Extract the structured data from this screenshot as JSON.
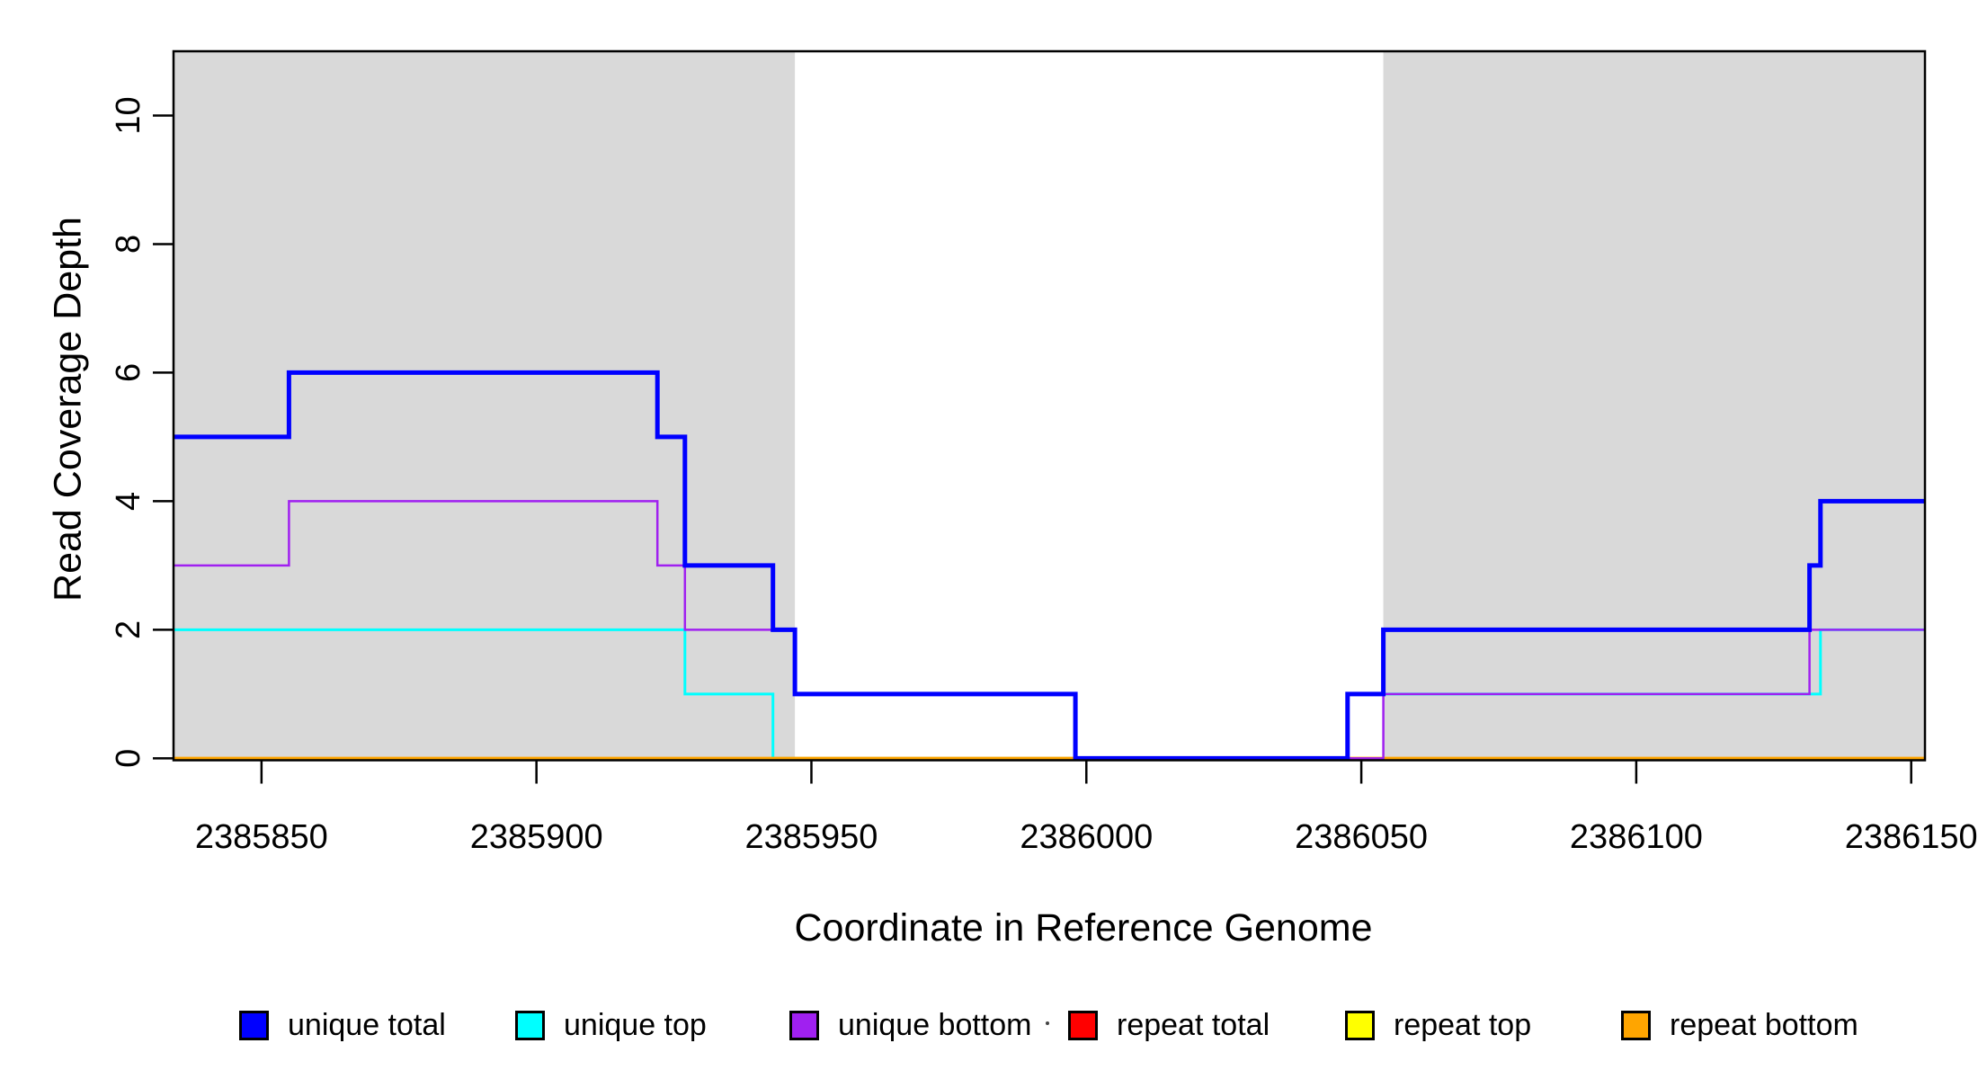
{
  "figure": {
    "background": "#ffffff",
    "box_color": "#000000",
    "tick_color": "#000000"
  },
  "chart_data": {
    "type": "line",
    "subtype": "step-coverage",
    "title": "",
    "xlabel": "Coordinate in Reference Genome",
    "ylabel": "Read Coverage Depth",
    "xlim": [
      2385834,
      2386152.5
    ],
    "ylim": [
      -0.03,
      11.0
    ],
    "grid": false,
    "legend_position": "bottom",
    "x_ticks": [
      2385850,
      2385900,
      2385950,
      2386000,
      2386050,
      2386100,
      2386150
    ],
    "y_ticks": [
      0,
      2,
      4,
      6,
      8,
      10
    ],
    "shaded_regions": [
      {
        "name": "repeat-region-left",
        "x0": 2385834,
        "x1": 2385947,
        "color": "#d9d9d9"
      },
      {
        "name": "repeat-region-right",
        "x0": 2386054,
        "x1": 2386152.5,
        "color": "#d9d9d9"
      }
    ],
    "series": [
      {
        "name": "unique top",
        "color": "#00ffff",
        "line_width": 3,
        "steps": [
          [
            2385834,
            2
          ],
          [
            2385927,
            1
          ],
          [
            2385943,
            0
          ],
          [
            2386047.5,
            1
          ],
          [
            2386133.5,
            2
          ]
        ]
      },
      {
        "name": "repeat total",
        "color": "#ff0000",
        "line_width": 2.5,
        "steps": [
          [
            2385834,
            0
          ]
        ]
      },
      {
        "name": "repeat top",
        "color": "#ffff00",
        "line_width": 2.5,
        "steps": [
          [
            2385834,
            0
          ]
        ]
      },
      {
        "name": "repeat bottom",
        "color": "#ffa500",
        "line_width": 3.5,
        "steps": [
          [
            2385834,
            0
          ]
        ]
      },
      {
        "name": "unique bottom",
        "color": "#a020f0",
        "line_width": 2.5,
        "steps": [
          [
            2385834,
            3
          ],
          [
            2385855,
            4
          ],
          [
            2385922,
            3
          ],
          [
            2385927,
            2
          ],
          [
            2385947,
            1
          ],
          [
            2385998,
            0
          ],
          [
            2386054,
            1
          ],
          [
            2386131.5,
            2
          ]
        ]
      },
      {
        "name": "unique total",
        "color": "#0000ff",
        "line_width": 5,
        "steps": [
          [
            2385834,
            5
          ],
          [
            2385855,
            6
          ],
          [
            2385922,
            5
          ],
          [
            2385927,
            3
          ],
          [
            2385943,
            2
          ],
          [
            2385947,
            1
          ],
          [
            2385998,
            0
          ],
          [
            2386047.5,
            1
          ],
          [
            2386054,
            2
          ],
          [
            2386131.5,
            3
          ],
          [
            2386133.5,
            4
          ]
        ]
      }
    ],
    "legend": [
      {
        "label": "unique total",
        "color": "#0000ff"
      },
      {
        "label": "unique top",
        "color": "#00ffff"
      },
      {
        "label": "unique bottom",
        "color": "#a020f0"
      },
      {
        "label": "repeat total",
        "color": "#ff0000"
      },
      {
        "label": "repeat top",
        "color": "#ffff00"
      },
      {
        "label": "repeat bottom",
        "color": "#ffa500"
      }
    ]
  }
}
